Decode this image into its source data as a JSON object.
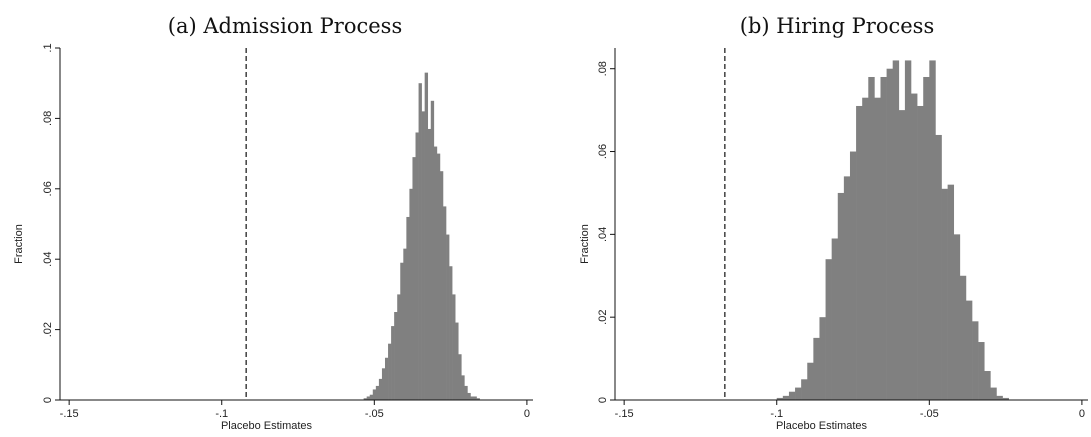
{
  "chart_data": [
    {
      "type": "bar",
      "title": "(a) Admission Process",
      "xlabel": "Placebo Estimates",
      "ylabel": "Fraction",
      "xlim": [
        -0.153,
        0.002
      ],
      "ylim": [
        0,
        0.1
      ],
      "xticks": [
        -0.15,
        -0.1,
        -0.05,
        0
      ],
      "xtick_labels": [
        "-.15",
        "-.1",
        "-.05",
        "0"
      ],
      "yticks": [
        0,
        0.02,
        0.04,
        0.06,
        0.08,
        0.1
      ],
      "ytick_labels": [
        "0",
        ".02",
        ".04",
        ".06",
        ".08",
        ".1"
      ],
      "reference_line_x": -0.092,
      "bar_color": "#808080",
      "bins": {
        "start": -0.0535,
        "width": 0.001,
        "values": [
          0.0005,
          0.001,
          0.0015,
          0.003,
          0.004,
          0.006,
          0.009,
          0.012,
          0.016,
          0.021,
          0.025,
          0.03,
          0.039,
          0.043,
          0.052,
          0.06,
          0.069,
          0.076,
          0.09,
          0.082,
          0.093,
          0.077,
          0.085,
          0.072,
          0.07,
          0.065,
          0.055,
          0.047,
          0.038,
          0.03,
          0.022,
          0.013,
          0.007,
          0.004,
          0.002,
          0.001,
          0.001,
          0.0005
        ]
      }
    },
    {
      "type": "bar",
      "title": "(b) Hiring Process",
      "xlabel": "Placebo Estimates",
      "ylabel": "Fraction",
      "xlim": [
        -0.153,
        0.002
      ],
      "ylim": [
        0,
        0.085
      ],
      "xticks": [
        -0.15,
        -0.1,
        -0.05,
        0
      ],
      "xtick_labels": [
        "-.15",
        "-.1",
        "-.05",
        "0"
      ],
      "yticks": [
        0,
        0.02,
        0.04,
        0.06,
        0.08
      ],
      "ytick_labels": [
        "0",
        ".02",
        ".04",
        ".06",
        ".08"
      ],
      "reference_line_x": -0.117,
      "bar_color": "#808080",
      "bins": {
        "start": -0.1,
        "width": 0.002,
        "values": [
          0.0005,
          0.001,
          0.002,
          0.003,
          0.005,
          0.009,
          0.015,
          0.02,
          0.034,
          0.039,
          0.05,
          0.054,
          0.06,
          0.071,
          0.073,
          0.078,
          0.073,
          0.078,
          0.08,
          0.082,
          0.07,
          0.082,
          0.074,
          0.071,
          0.078,
          0.082,
          0.064,
          0.051,
          0.052,
          0.04,
          0.03,
          0.024,
          0.019,
          0.014,
          0.007,
          0.003,
          0.001,
          0.0005
        ]
      }
    }
  ]
}
